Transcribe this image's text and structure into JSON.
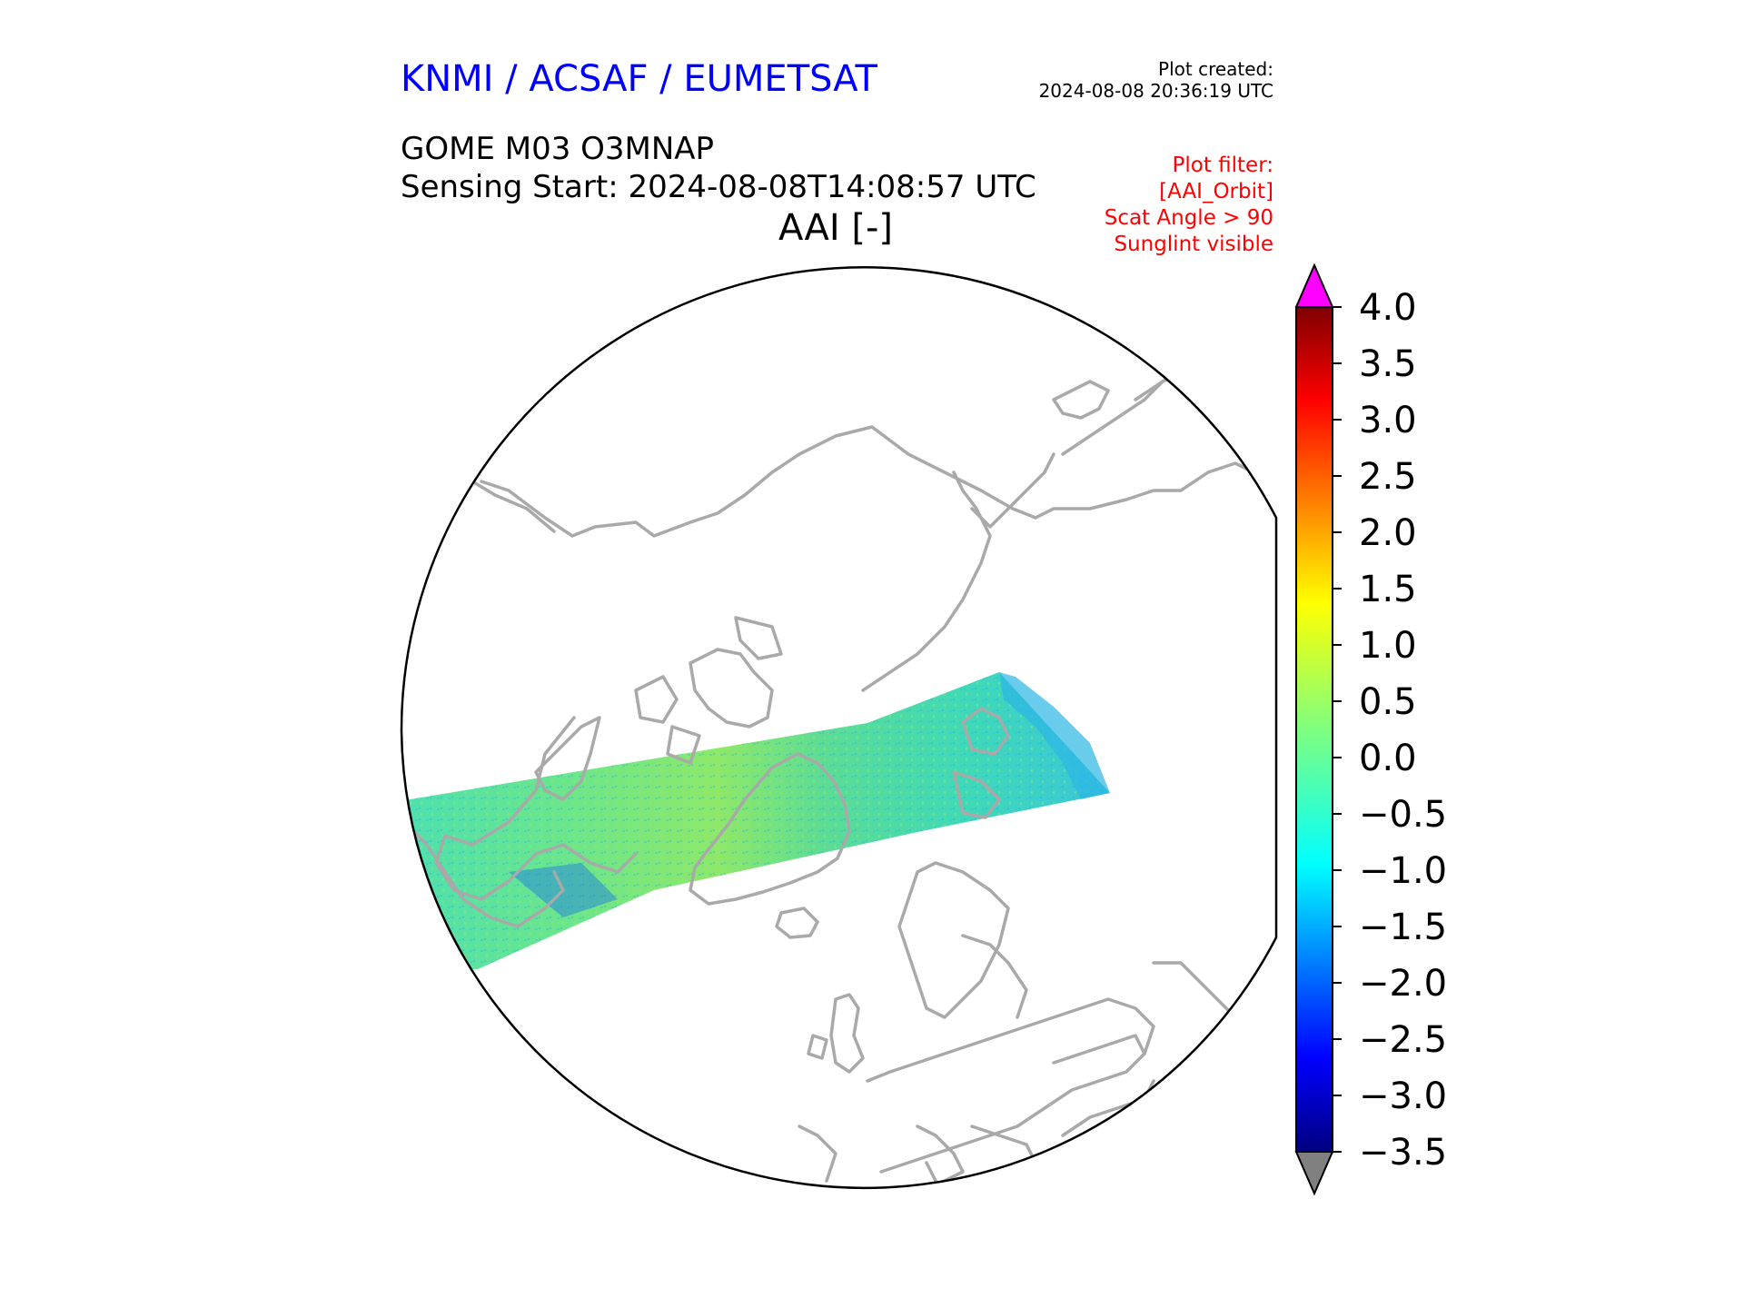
{
  "header": {
    "organization": "KNMI / ACSAF / EUMETSAT",
    "plot_created_label": "Plot created:",
    "plot_created_time": "2024-08-08 20:36:19 UTC",
    "product": "GOME M03 O3MNAP",
    "sensing_start": "Sensing Start: 2024-08-08T14:08:57 UTC",
    "variable": "AAI [-]",
    "filter_lines": [
      "Plot filter:",
      "[AAI_Orbit]",
      "Scat Angle > 90",
      "Sunglint visible"
    ]
  },
  "colorbar": {
    "min": -3.5,
    "max": 4.0,
    "ticks": [
      "4.0",
      "3.5",
      "3.0",
      "2.5",
      "2.0",
      "1.5",
      "1.0",
      "0.5",
      "0.0",
      "−0.5",
      "−1.0",
      "−1.5",
      "−2.0",
      "−2.5",
      "−3.0",
      "−3.5"
    ],
    "over_color": "#ff00ff",
    "under_color": "#808080",
    "colormap": "jet"
  },
  "colors": {
    "coastline": "#a9a9a9",
    "map_border": "#000000",
    "swath_main": "#4ce0a0"
  }
}
